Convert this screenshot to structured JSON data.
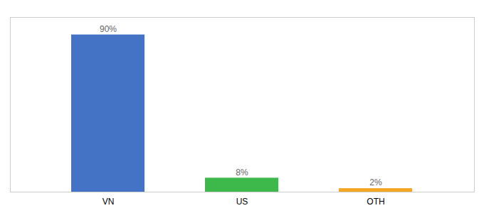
{
  "chart_data": {
    "type": "bar",
    "categories": [
      "VN",
      "US",
      "OTH"
    ],
    "values": [
      90,
      8,
      2
    ],
    "value_labels": [
      "90%",
      "8%",
      "2%"
    ],
    "colors": [
      "#4472C4",
      "#3CB94A",
      "#F5A623"
    ],
    "ylim": [
      0,
      100
    ],
    "grid": false,
    "data_labels": true,
    "tick_labels": "x"
  }
}
